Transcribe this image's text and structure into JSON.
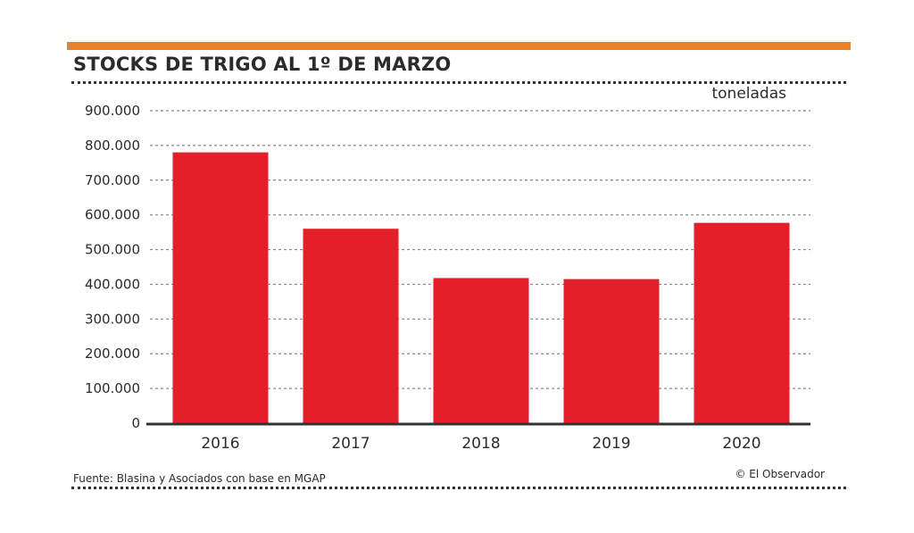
{
  "chart_data": {
    "type": "bar",
    "title": "STOCKS DE TRIGO AL 1º DE MARZO",
    "unit_label": "toneladas",
    "categories": [
      "2016",
      "2017",
      "2018",
      "2019",
      "2020"
    ],
    "values": [
      780000,
      560000,
      418000,
      415000,
      577000
    ],
    "ylim": [
      0,
      900000
    ],
    "yticks": [
      0,
      100000,
      200000,
      300000,
      400000,
      500000,
      600000,
      700000,
      800000,
      900000
    ],
    "ytick_labels": [
      "0",
      "100.000",
      "200.000",
      "300.000",
      "400.000",
      "500.000",
      "600.000",
      "700.000",
      "800.000",
      "900.000"
    ],
    "grid": true,
    "bar_color": "#e3202a",
    "accent_color": "#e8822d",
    "source": "Fuente: Blasina y Asociados con base en MGAP",
    "credit": "© El Observador"
  }
}
